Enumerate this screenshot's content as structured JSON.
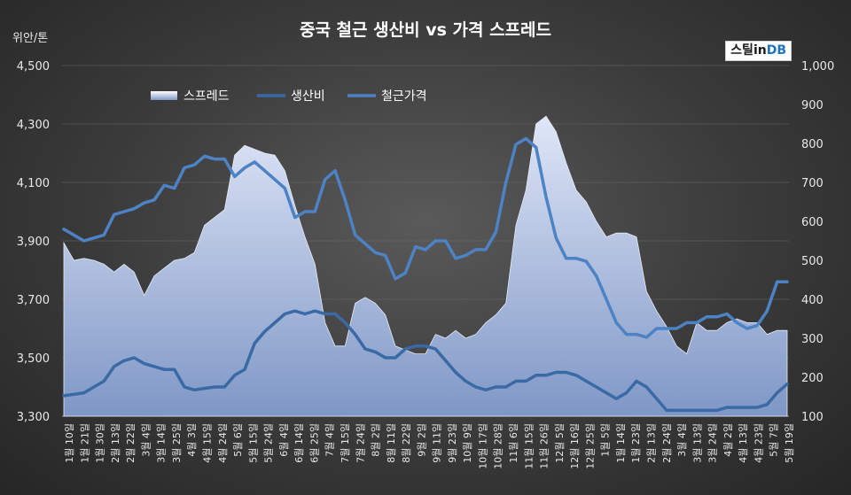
{
  "chart_data": {
    "type": "line",
    "title": "중국 철근 생산비 vs 가격 스프레드",
    "ylabel_left": "위안/톤",
    "ylim_left": [
      3300,
      4500
    ],
    "yticks_left": [
      "3,300",
      "3,500",
      "3,700",
      "3,900",
      "4,100",
      "4,300",
      "4,500"
    ],
    "ylim_right": [
      100,
      1000
    ],
    "yticks_right": [
      "100",
      "200",
      "300",
      "400",
      "500",
      "600",
      "700",
      "800",
      "900",
      "1,000"
    ],
    "x_tick_labels": [
      "1월 10일",
      "1월 21일",
      "1월 30일",
      "2월 13일",
      "2월 22일",
      "3월 4일",
      "3월 14일",
      "3월 25일",
      "4월 3일",
      "4월 15일",
      "4월 24일",
      "5월 6일",
      "5월 15일",
      "5월 24일",
      "6월 4일",
      "6월 14일",
      "6월 25일",
      "7월 4일",
      "7월 15일",
      "7월 24일",
      "8월 2일",
      "8월 11일",
      "8월 22일",
      "9월 2일",
      "9월 11일",
      "9월 23일",
      "10월 9일",
      "10월 17일",
      "10월 28일",
      "11월 6일",
      "11월 15일",
      "11월 26일",
      "12월 5일",
      "12월 16일",
      "12월 25일",
      "1월 5일",
      "1월 14일",
      "1월 23일",
      "2월 13일",
      "2월 24일",
      "3월 4일",
      "3월 13일",
      "3월 24일",
      "4월 2일",
      "4월 13일",
      "4월 23일",
      "5월 7일",
      "5월 19일"
    ],
    "legend_position": "top-left",
    "legend": [
      "스프레드",
      "생산비",
      "철근가격"
    ],
    "series": [
      {
        "name": "스프레드",
        "axis": "right",
        "style": "area",
        "values": [
          545,
          500,
          505,
          500,
          490,
          470,
          490,
          470,
          410,
          460,
          480,
          500,
          505,
          520,
          590,
          610,
          630,
          770,
          795,
          785,
          775,
          770,
          730,
          640,
          560,
          490,
          340,
          280,
          280,
          390,
          405,
          390,
          360,
          280,
          270,
          260,
          260,
          310,
          300,
          320,
          300,
          310,
          340,
          360,
          390,
          590,
          680,
          850,
          870,
          830,
          750,
          680,
          650,
          600,
          560,
          570,
          570,
          560,
          420,
          370,
          330,
          280,
          260,
          340,
          320,
          320,
          340,
          350,
          340,
          340,
          310,
          320,
          320
        ]
      },
      {
        "name": "생산비",
        "axis": "left",
        "style": "line",
        "values": [
          3370,
          3375,
          3380,
          3400,
          3420,
          3470,
          3490,
          3500,
          3480,
          3470,
          3460,
          3460,
          3400,
          3390,
          3395,
          3400,
          3400,
          3440,
          3460,
          3550,
          3590,
          3620,
          3650,
          3660,
          3650,
          3660,
          3650,
          3650,
          3620,
          3580,
          3530,
          3520,
          3500,
          3500,
          3530,
          3540,
          3540,
          3530,
          3490,
          3450,
          3420,
          3400,
          3390,
          3400,
          3400,
          3420,
          3420,
          3440,
          3440,
          3450,
          3450,
          3440,
          3420,
          3400,
          3380,
          3360,
          3380,
          3420,
          3400,
          3360,
          3320,
          3320,
          3320,
          3320,
          3320,
          3320,
          3330,
          3330,
          3330,
          3330,
          3340,
          3380,
          3410
        ]
      },
      {
        "name": "철근가격",
        "axis": "left",
        "style": "line",
        "values": [
          3940,
          3920,
          3900,
          3910,
          3920,
          3990,
          4000,
          4010,
          4030,
          4040,
          4090,
          4080,
          4150,
          4160,
          4190,
          4180,
          4180,
          4120,
          4150,
          4170,
          4140,
          4110,
          4080,
          3980,
          4000,
          4000,
          4110,
          4140,
          4040,
          3920,
          3890,
          3860,
          3850,
          3770,
          3790,
          3880,
          3870,
          3900,
          3900,
          3840,
          3850,
          3870,
          3870,
          3930,
          4100,
          4230,
          4250,
          4220,
          4050,
          3910,
          3840,
          3840,
          3830,
          3780,
          3700,
          3620,
          3580,
          3580,
          3570,
          3600,
          3600,
          3600,
          3620,
          3620,
          3640,
          3640,
          3650,
          3620,
          3600,
          3610,
          3660,
          3760,
          3760
        ]
      }
    ]
  },
  "branding": {
    "part1": "스틸",
    "part2": "in",
    "part3": "DB"
  },
  "colors": {
    "spread_fill": "#c6d4ee",
    "cost_line": "#3a6aa6",
    "price_line": "#4d82c4",
    "background": "#3c3c3c"
  }
}
